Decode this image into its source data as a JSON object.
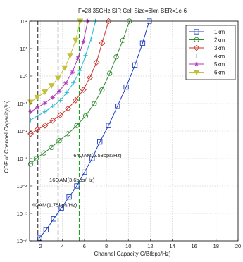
{
  "chart_data": {
    "type": "line",
    "title": "F=28.35GHz SIR Cell Size=6km BER=1e-6",
    "xlabel": "Channel Capacity C/B(bps/Hz)",
    "ylabel": "CDF of Channel Capacity(%)",
    "xlim": [
      1,
      20
    ],
    "ylim_log10": [
      -6,
      2
    ],
    "x_ticks": [
      2,
      4,
      6,
      8,
      10,
      12,
      14,
      16,
      18,
      20
    ],
    "y_ticks": [
      {
        "exp": -6,
        "label": "10⁻⁶"
      },
      {
        "exp": -5,
        "label": "10⁻⁵"
      },
      {
        "exp": -4,
        "label": "10⁻⁴"
      },
      {
        "exp": -3,
        "label": "10⁻³"
      },
      {
        "exp": -2,
        "label": "10⁻²"
      },
      {
        "exp": -1,
        "label": "10⁻¹"
      },
      {
        "exp": 0,
        "label": "10⁰"
      },
      {
        "exp": 1,
        "label": "10¹"
      },
      {
        "exp": 2,
        "label": "10²"
      }
    ],
    "grid": true,
    "legend_position": "top-right",
    "series": [
      {
        "name": "1km",
        "color": "#1f3fbf",
        "marker": "square",
        "x": [
          1.9,
          2.5,
          3.2,
          3.9,
          4.6,
          5.3,
          6.0,
          6.7,
          7.4,
          8.2,
          9.0,
          9.8,
          10.6,
          11.3,
          11.9
        ],
        "y": [
          -5.9,
          -5.6,
          -5.2,
          -4.8,
          -4.4,
          -4.0,
          -3.5,
          -3.0,
          -2.4,
          -1.8,
          -1.1,
          -0.4,
          0.4,
          1.2,
          2.0
        ]
      },
      {
        "name": "2km",
        "color": "#2e8b2e",
        "marker": "circle",
        "x": [
          1.1,
          1.6,
          2.3,
          3.0,
          3.7,
          4.5,
          5.3,
          6.1,
          6.9,
          7.6,
          8.3,
          8.9,
          9.5,
          10.1
        ],
        "y": [
          -3.2,
          -3.0,
          -2.8,
          -2.6,
          -2.35,
          -2.1,
          -1.8,
          -1.45,
          -1.0,
          -0.5,
          0.1,
          0.7,
          1.3,
          2.0
        ]
      },
      {
        "name": "3km",
        "color": "#c8302a",
        "marker": "diamond",
        "x": [
          1.1,
          1.7,
          2.4,
          3.1,
          3.8,
          4.5,
          5.2,
          5.9,
          6.5,
          7.1,
          7.6,
          8.2
        ],
        "y": [
          -2.1,
          -1.95,
          -1.8,
          -1.62,
          -1.42,
          -1.18,
          -0.88,
          -0.5,
          -0.05,
          0.5,
          1.2,
          2.0
        ]
      },
      {
        "name": "4km",
        "color": "#2ab8d0",
        "marker": "plus",
        "x": [
          1.1,
          1.7,
          2.4,
          3.1,
          3.8,
          4.4,
          5.0,
          5.6,
          6.1,
          6.6,
          7.0
        ],
        "y": [
          -1.6,
          -1.45,
          -1.3,
          -1.1,
          -0.88,
          -0.6,
          -0.25,
          0.2,
          0.75,
          1.35,
          2.0
        ]
      },
      {
        "name": "5km",
        "color": "#b03ab8",
        "marker": "star",
        "x": [
          1.1,
          1.7,
          2.4,
          3.1,
          3.7,
          4.3,
          4.9,
          5.4,
          5.9,
          6.3
        ],
        "y": [
          -1.3,
          -1.15,
          -0.98,
          -0.78,
          -0.55,
          -0.25,
          0.15,
          0.65,
          1.25,
          2.0
        ]
      },
      {
        "name": "6km",
        "color": "#c2c23a",
        "marker": "triangle-down",
        "x": [
          1.1,
          1.7,
          2.4,
          3.0,
          3.6,
          4.2,
          4.7,
          5.2,
          5.6
        ],
        "y": [
          -0.95,
          -0.78,
          -0.58,
          -0.35,
          -0.08,
          0.3,
          0.75,
          1.3,
          2.0
        ]
      }
    ],
    "vertical_lines": [
      {
        "x": 1.75,
        "color": "#555555",
        "style": "dashed",
        "label": "4QAM(1.75bps/Hz)",
        "label_x": 1.2,
        "label_y": -4.75
      },
      {
        "x": 3.6,
        "color": "#555555",
        "style": "dashed",
        "label": "16QAM(3.6bps/Hz)",
        "label_x": 2.8,
        "label_y": -3.85
      },
      {
        "x": 5.53,
        "color": "#1aa11a",
        "style": "dashed",
        "label": "64QAM(5.53bps/Hz)",
        "label_x": 5.0,
        "label_y": -2.95
      }
    ]
  }
}
